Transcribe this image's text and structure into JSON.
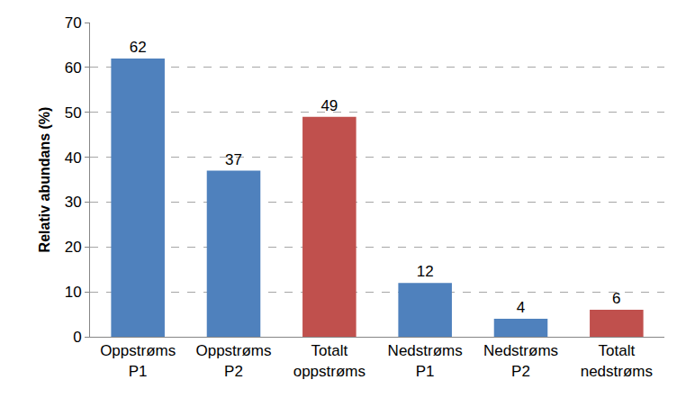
{
  "chart_data": {
    "type": "bar",
    "y_label": "Relativ abundans (%)",
    "categories": [
      "Oppstrøms P1",
      "Oppstrøms P2",
      "Totalt oppstrøms",
      "Nedstrøms P1",
      "Nedstrøms P2",
      "Totalt nedstrøms"
    ],
    "values": [
      62,
      37,
      49,
      12,
      4,
      6
    ],
    "colors": [
      "#4f81bd",
      "#4f81bd",
      "#c0504d",
      "#4f81bd",
      "#4f81bd",
      "#c0504d"
    ],
    "ylim": [
      0,
      70
    ],
    "yticks": [
      0,
      10,
      20,
      30,
      40,
      50,
      60,
      70
    ],
    "grid": true,
    "data_labels": true
  }
}
